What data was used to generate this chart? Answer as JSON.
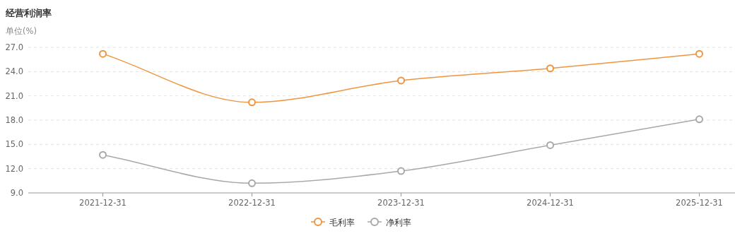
{
  "chart_data": {
    "type": "line",
    "title": "经营利润率",
    "ylabel": "单位(%)",
    "categories": [
      "2021-12-31",
      "2022-12-31",
      "2023-12-31",
      "2024-12-31",
      "2025-12-31"
    ],
    "series": [
      {
        "name": "毛利率",
        "color": "#f0953f",
        "values": [
          26.2,
          20.2,
          22.9,
          24.4,
          26.2
        ]
      },
      {
        "name": "净利率",
        "color": "#a8a8a8",
        "values": [
          13.7,
          10.2,
          11.7,
          14.9,
          18.1
        ]
      }
    ],
    "ylim": [
      9,
      27
    ],
    "yticks": [
      {
        "value": 9,
        "label": "9.0"
      },
      {
        "value": 12,
        "label": "12.0"
      },
      {
        "value": 15,
        "label": "15.0"
      },
      {
        "value": 18,
        "label": "18.0"
      },
      {
        "value": 21,
        "label": "21.0"
      },
      {
        "value": 24,
        "label": "24.0"
      },
      {
        "value": 27,
        "label": "27.0"
      }
    ],
    "grid": "y",
    "legend": "bottom",
    "marker": "circle",
    "line_style": "solid"
  }
}
